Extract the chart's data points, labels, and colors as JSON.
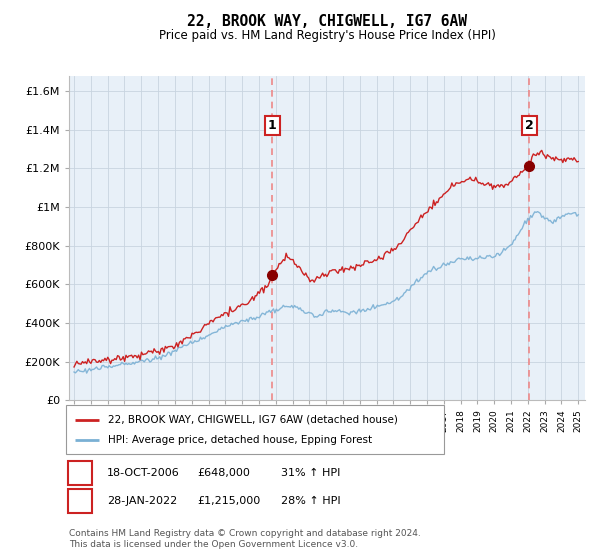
{
  "title": "22, BROOK WAY, CHIGWELL, IG7 6AW",
  "subtitle": "Price paid vs. HM Land Registry's House Price Index (HPI)",
  "ylabel_ticks": [
    "£0",
    "£200K",
    "£400K",
    "£600K",
    "£800K",
    "£1M",
    "£1.2M",
    "£1.4M",
    "£1.6M"
  ],
  "ytick_values": [
    0,
    200000,
    400000,
    600000,
    800000,
    1000000,
    1200000,
    1400000,
    1600000
  ],
  "ylim": [
    0,
    1680000
  ],
  "purchase1_date": 2006.8,
  "purchase1_price": 648000,
  "purchase1_label": "1",
  "purchase2_date": 2022.08,
  "purchase2_price": 1215000,
  "purchase2_label": "2",
  "legend_entry1": "22, BROOK WAY, CHIGWELL, IG7 6AW (detached house)",
  "legend_entry2": "HPI: Average price, detached house, Epping Forest",
  "annotation1_date": "18-OCT-2006",
  "annotation1_price": "£648,000",
  "annotation1_hpi": "31% ↑ HPI",
  "annotation2_date": "28-JAN-2022",
  "annotation2_price": "£1,215,000",
  "annotation2_hpi": "28% ↑ HPI",
  "footer": "Contains HM Land Registry data © Crown copyright and database right 2024.\nThis data is licensed under the Open Government Licence v3.0.",
  "line_color_red": "#cc2222",
  "line_color_blue": "#7ab0d4",
  "background_color": "#ffffff",
  "chart_bg_color": "#e8f0f8",
  "grid_color": "#c8d4e0",
  "vline_color": "#ee8888"
}
